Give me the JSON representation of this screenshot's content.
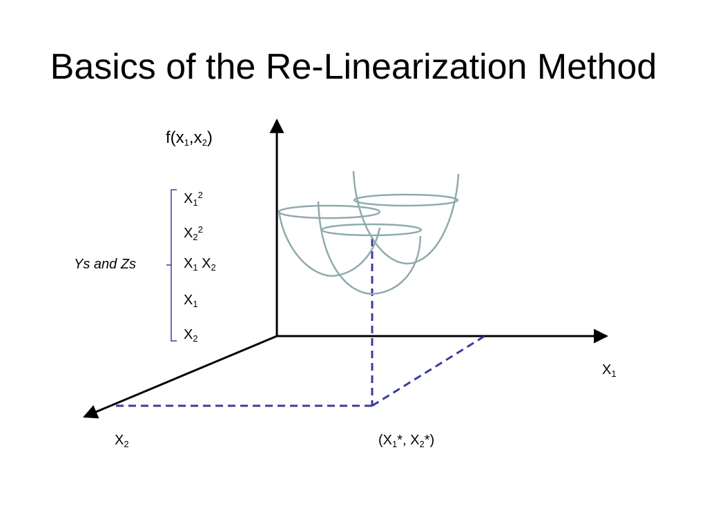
{
  "slide": {
    "title": "Basics of the Re-Linearization Method"
  },
  "axes": {
    "vertical": {
      "base": "f(x",
      "sub1": "1",
      "sep": ",x",
      "sub2": "2",
      "close": ")"
    },
    "x1": {
      "base": "X",
      "sub": "1"
    },
    "x2": {
      "base": "X",
      "sub": "2"
    }
  },
  "point": {
    "open": "(X",
    "sub1": "1",
    "mid": "*, X",
    "sub2": "2",
    "close": "*)"
  },
  "brace_group": {
    "label": "Ys and Zs",
    "terms": [
      {
        "base": "X",
        "sub": "1",
        "sup": "2"
      },
      {
        "base": "X",
        "sub": "2",
        "sup": "2"
      },
      {
        "base": "X",
        "sub": "1",
        "base2": " X",
        "sub2": "2"
      },
      {
        "base": "X",
        "sub": "1"
      },
      {
        "base": "X",
        "sub": "2"
      }
    ]
  },
  "colors": {
    "axis": "#000000",
    "bowl": "#8fa9ad",
    "projection": "#3a3aa0",
    "brace": "#3a3a9a"
  }
}
